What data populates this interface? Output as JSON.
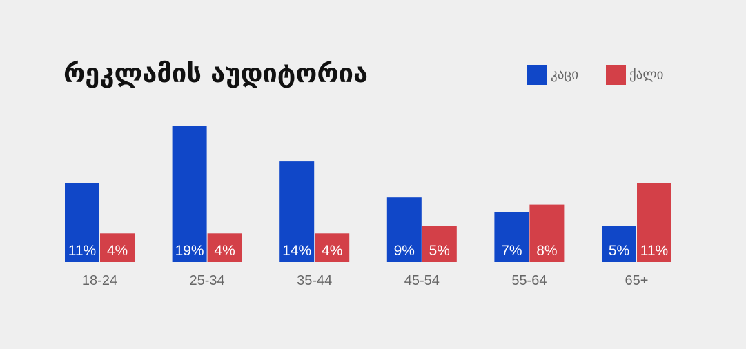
{
  "chart_data": {
    "type": "bar",
    "title": "რეკლამის აუდიტორია",
    "categories": [
      "18-24",
      "25-34",
      "35-44",
      "45-54",
      "55-64",
      "65+"
    ],
    "series": [
      {
        "name": "კაცი",
        "color": "#1047c8",
        "values": [
          11,
          19,
          14,
          9,
          7,
          5
        ],
        "labels": [
          "11%",
          "19%",
          "14%",
          "9%",
          "7%",
          "5%"
        ]
      },
      {
        "name": "ქალი",
        "color": "#d34048",
        "values": [
          4,
          4,
          4,
          5,
          8,
          11
        ],
        "labels": [
          "4%",
          "4%",
          "4%",
          "5%",
          "8%",
          "11%"
        ]
      }
    ],
    "ylim": [
      0,
      19
    ],
    "legend_position": "top-right",
    "grid": false
  }
}
